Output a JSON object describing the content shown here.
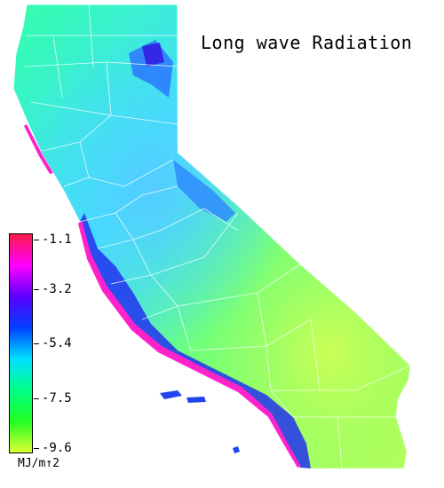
{
  "title": "Long wave Radiation",
  "legend": {
    "unit": "MJ/m↑2",
    "ticks": [
      "-1.1",
      "-3.2",
      "-5.4",
      "-7.5",
      "-9.6"
    ],
    "colors": [
      "#ff1a4a",
      "#ff00ff",
      "#5a00ff",
      "#0040ff",
      "#00e0ff",
      "#00ff88",
      "#22ff22",
      "#ddff33"
    ]
  },
  "map_colors": {
    "north": "#33ffaa",
    "central_valley": "#44ddff",
    "sierra": "#2299ff",
    "coast_dark": "#2200ee",
    "coast_edge": "#ff22cc",
    "desert": "#99ff44",
    "east_desert": "#ccff55"
  }
}
